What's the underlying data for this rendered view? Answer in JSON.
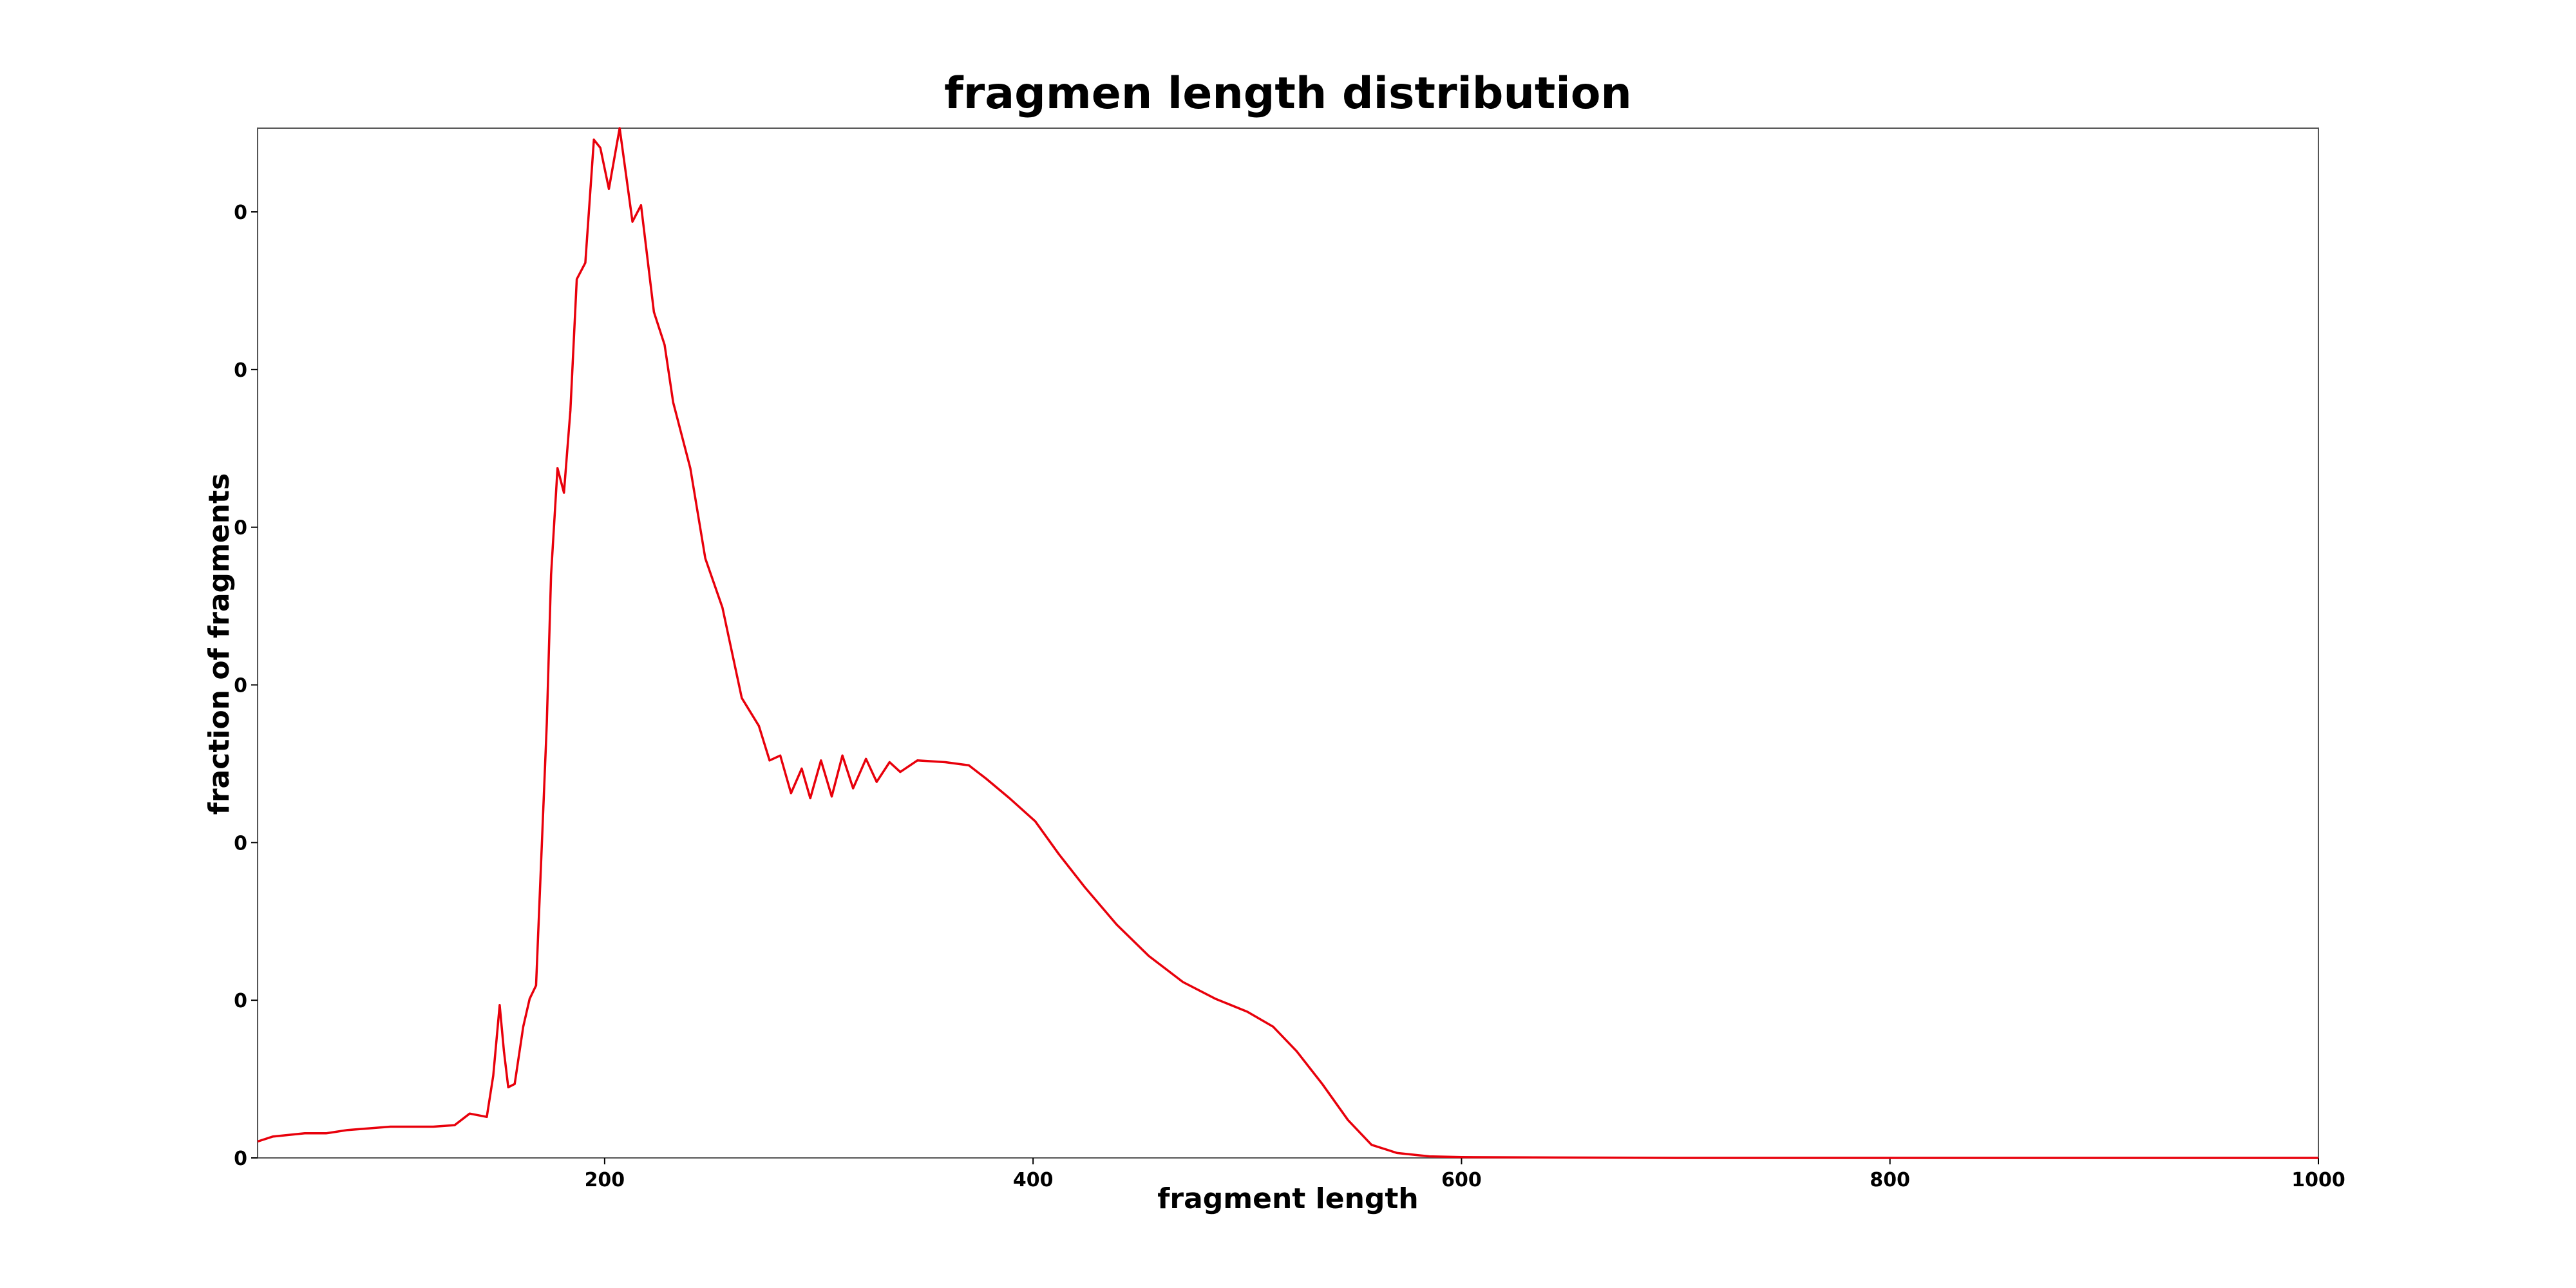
{
  "chart_data": {
    "type": "line",
    "title": "fragmen length distribution",
    "x_label": "fragment length",
    "y_label": "fraction of fragments",
    "x": [
      38,
      45,
      60,
      70,
      80,
      100,
      120,
      130,
      137,
      145,
      148,
      151,
      153,
      155,
      158,
      162,
      165,
      168,
      173,
      175,
      178,
      181,
      184,
      187,
      191,
      195,
      198,
      202,
      207,
      213,
      217,
      223,
      228,
      232,
      240,
      247,
      255,
      264,
      272,
      277,
      282,
      287,
      292,
      296,
      301,
      306,
      311,
      316,
      322,
      327,
      333,
      338,
      346,
      359,
      370,
      378,
      389,
      401,
      412,
      424,
      439,
      454,
      470,
      485,
      500,
      512,
      523,
      535,
      547,
      558,
      570,
      585,
      600,
      700,
      800,
      1000
    ],
    "series": [
      {
        "name": "fraction",
        "color": "#e8000b",
        "values": [
          0.000104,
          0.000135,
          0.000156,
          0.000156,
          0.000177,
          0.000198,
          0.000198,
          0.000208,
          0.000281,
          0.00026,
          0.000521,
          0.000969,
          0.000677,
          0.000448,
          0.000469,
          0.000833,
          0.00101,
          0.001094,
          0.00276,
          0.003698,
          0.004375,
          0.004219,
          0.00474,
          0.005573,
          0.005677,
          0.006458,
          0.006406,
          0.006146,
          0.006531,
          0.005938,
          0.006042,
          0.005365,
          0.005156,
          0.004792,
          0.004375,
          0.003802,
          0.00349,
          0.002917,
          0.00274,
          0.002521,
          0.002552,
          0.002313,
          0.002469,
          0.002281,
          0.002521,
          0.002292,
          0.002552,
          0.002344,
          0.002531,
          0.002385,
          0.00251,
          0.002448,
          0.002521,
          0.00251,
          0.00249,
          0.002406,
          0.002281,
          0.002135,
          0.001927,
          0.001719,
          0.00148,
          0.001281,
          0.001115,
          0.00101,
          0.000927,
          0.000833,
          0.000677,
          0.000469,
          0.00024,
          8.3e-05,
          3.1e-05,
          1e-05,
          5e-06,
          0,
          0,
          0
        ]
      }
    ],
    "xlim": [
      38,
      1000
    ],
    "xticks": [
      200,
      400,
      600,
      800,
      1000
    ],
    "ylim": [
      0,
      0.006531
    ],
    "yticks": [
      {
        "value": 0,
        "label": "0"
      },
      {
        "value": 0.001,
        "label": "0"
      },
      {
        "value": 0.002,
        "label": "0"
      },
      {
        "value": 0.003,
        "label": "0"
      },
      {
        "value": 0.004,
        "label": "0"
      },
      {
        "value": 0.005,
        "label": "0"
      },
      {
        "value": 0.006,
        "label": "0"
      }
    ],
    "grid": false
  }
}
